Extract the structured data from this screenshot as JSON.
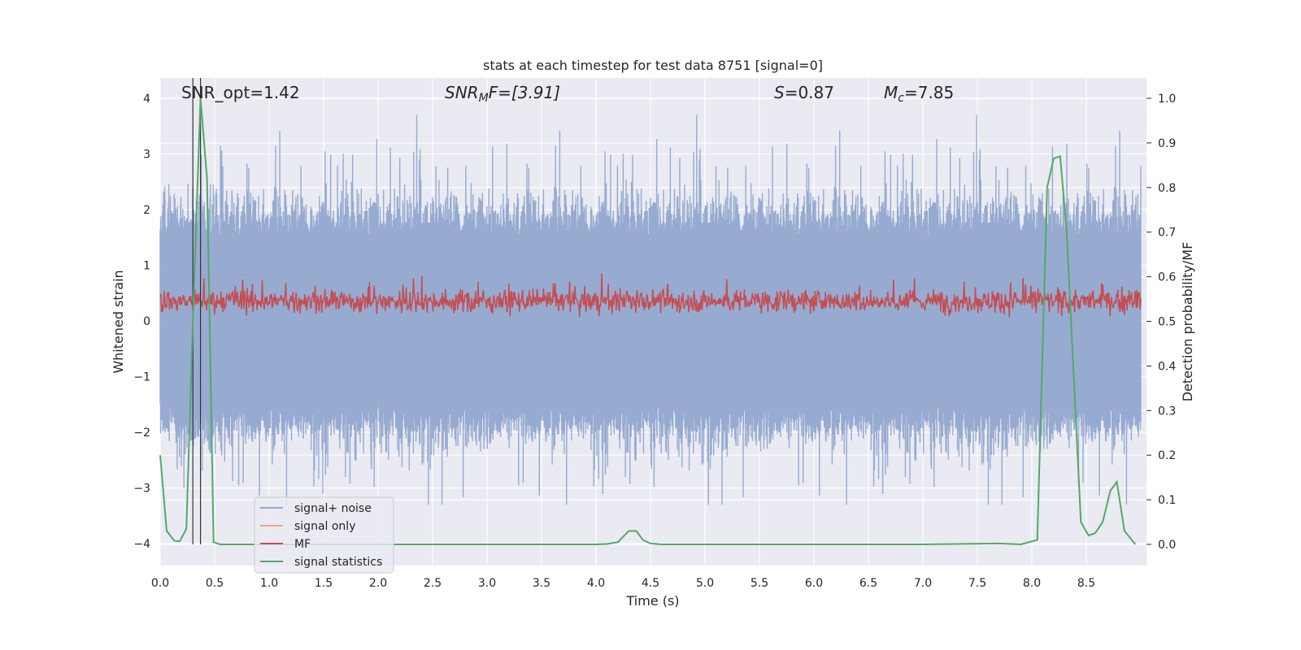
{
  "chart_data": {
    "type": "line",
    "title": "stats at each timestep for test data 8751 [signal=0]",
    "xlabel": "Time (s)",
    "ylabel": "Whitened strain",
    "y2label": "Detection probability/MF",
    "xlim": [
      0.0,
      9.0
    ],
    "ylim": [
      -4.4,
      4.4
    ],
    "y2lim": [
      -0.05,
      1.05
    ],
    "xticks": [
      "0.0",
      "0.5",
      "1.0",
      "1.5",
      "2.0",
      "2.5",
      "3.0",
      "3.5",
      "4.0",
      "4.5",
      "5.0",
      "5.5",
      "6.0",
      "6.5",
      "7.0",
      "7.5",
      "8.0",
      "8.5"
    ],
    "xtick_values": [
      0.0,
      0.5,
      1.0,
      1.5,
      2.0,
      2.5,
      3.0,
      3.5,
      4.0,
      4.5,
      5.0,
      5.5,
      6.0,
      6.5,
      7.0,
      7.5,
      8.0,
      8.5
    ],
    "yticks": [
      "4",
      "3",
      "2",
      "1",
      "0",
      "−1",
      "−2",
      "−3",
      "−4"
    ],
    "ytick_values": [
      4,
      3,
      2,
      1,
      0,
      -1,
      -2,
      -3,
      -4
    ],
    "y2ticks": [
      "1.0",
      "0.9",
      "0.8",
      "0.7",
      "0.6",
      "0.5",
      "0.4",
      "0.3",
      "0.2",
      "0.1",
      "0.0"
    ],
    "y2tick_values": [
      1.0,
      0.9,
      0.8,
      0.7,
      0.6,
      0.5,
      0.4,
      0.3,
      0.2,
      0.1,
      0.0
    ],
    "annotations": {
      "snr_opt": "SNR_opt=1.42",
      "snr_mf_base": "SNR",
      "snr_mf_sub": "M",
      "snr_mf_rest": "F=[3.91]",
      "s_var": "S",
      "s_rest": "=0.87",
      "mc_var": "M",
      "mc_sub": "c",
      "mc_rest": "=7.85"
    },
    "vertical_lines_x": [
      0.3,
      0.37
    ],
    "legend": {
      "placement": "lower-left",
      "entries": [
        {
          "label": "signal+ noise",
          "color": "#92a8cf"
        },
        {
          "label": "signal only",
          "color": "#e8a98a"
        },
        {
          "label": "MF",
          "color": "#c44e52"
        },
        {
          "label": "signal statistics",
          "color": "#55a868"
        }
      ]
    },
    "series": [
      {
        "name": "signal statistics",
        "axis": "right",
        "color": "#55a868",
        "x": [
          0.0,
          0.06,
          0.13,
          0.18,
          0.24,
          0.3,
          0.37,
          0.43,
          0.49,
          0.55,
          1.0,
          2.0,
          3.0,
          4.0,
          4.1,
          4.2,
          4.3,
          4.37,
          4.43,
          4.5,
          4.6,
          5.0,
          6.0,
          7.0,
          7.7,
          7.9,
          8.05,
          8.14,
          8.2,
          8.26,
          8.32,
          8.38,
          8.45,
          8.52,
          8.58,
          8.65,
          8.72,
          8.78,
          8.85,
          8.95
        ],
        "y": [
          0.2,
          0.03,
          0.008,
          0.007,
          0.035,
          0.5,
          1.0,
          0.82,
          0.005,
          0.0,
          0.0,
          0.0,
          0.0,
          0.0,
          0.001,
          0.005,
          0.03,
          0.03,
          0.01,
          0.002,
          0.0,
          0.0,
          0.0,
          0.0,
          0.002,
          0.0,
          0.01,
          0.8,
          0.865,
          0.87,
          0.7,
          0.4,
          0.05,
          0.02,
          0.025,
          0.05,
          0.12,
          0.14,
          0.03,
          0.0
        ]
      },
      {
        "name": "signal+ noise",
        "axis": "left",
        "color": "#92a8cf",
        "description_range": [
          -3.3,
          4.0
        ]
      },
      {
        "name": "MF",
        "axis": "right",
        "color": "#c44e52",
        "description_range": [
          0.5,
          0.62
        ]
      }
    ]
  }
}
